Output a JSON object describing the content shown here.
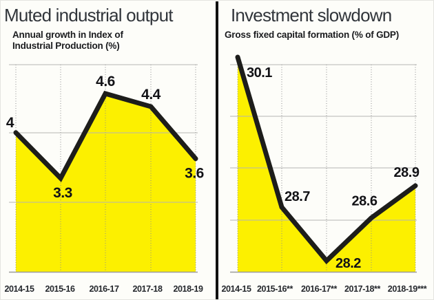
{
  "page": {
    "background_color": "#fdfdf9",
    "divider_color": "#101010",
    "accent_yellow": "#fcf000",
    "line_color": "#1d1d1b",
    "grid_color": "#b5b5b3",
    "title_color": "#31353b"
  },
  "chart_data": [
    {
      "type": "area",
      "title": "Muted industrial output",
      "subtitle": "Annual growth in Index of Industrial Production (%)",
      "categories": [
        "2014-15",
        "2015-16",
        "2016-17",
        "2017-18",
        "2018-19"
      ],
      "values": [
        4,
        3.3,
        4.6,
        4.4,
        3.6
      ],
      "value_labels": [
        "4",
        "3.3",
        "4.6",
        "4.4",
        "3.6"
      ],
      "fill_color": "#fcf000",
      "stroke_color": "#1d1d1b",
      "grid": "horizontal solid + vertical dotted",
      "legend": "none"
    },
    {
      "type": "area",
      "title": "Investment slowdown",
      "subtitle": "Gross fixed capital formation (% of GDP)",
      "categories": [
        "2014-15",
        "2015-16**",
        "2016-17**",
        "2017-18**",
        "2018-19***"
      ],
      "values": [
        30.1,
        28.7,
        28.2,
        28.6,
        28.9
      ],
      "value_labels": [
        "30.1",
        "28.7",
        "28.2",
        "28.6",
        "28.9"
      ],
      "fill_color": "#fcf000",
      "stroke_color": "#1d1d1b",
      "grid": "horizontal solid + vertical dotted",
      "legend": "none"
    }
  ]
}
